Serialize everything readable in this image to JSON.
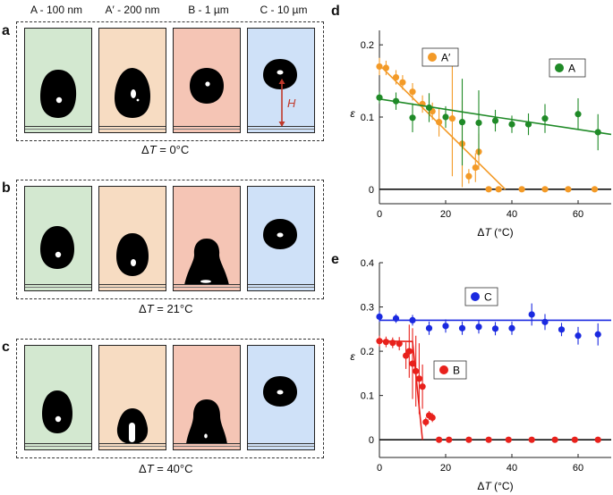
{
  "column_labels": [
    "A - 100 nm",
    "A′ - 200 nm",
    "B - 1 µm",
    "C - 10 µm"
  ],
  "column_colors": [
    "#d3e8d0",
    "#f7dcc2",
    "#f5c5b5",
    "#cfe1f8"
  ],
  "panel_letters": {
    "a": "a",
    "b": "b",
    "c": "c",
    "d": "d",
    "e": "e"
  },
  "rows": [
    {
      "dt_prefix": "Δ",
      "dt_var": "T",
      "dt_value": " = 0°C"
    },
    {
      "dt_prefix": "Δ",
      "dt_var": "T",
      "dt_value": " = 21°C"
    },
    {
      "dt_prefix": "Δ",
      "dt_var": "T",
      "dt_value": " = 40°C"
    }
  ],
  "height_marker_label": "H",
  "chart_data": [
    {
      "type": "scatter",
      "panel": "d",
      "xlabel_prefix": "Δ",
      "xlabel_var": "T",
      "xlabel_unit": " (°C)",
      "ylabel": "ε",
      "xlim": [
        0,
        70
      ],
      "ylim": [
        -0.02,
        0.22
      ],
      "xticks": [
        0,
        20,
        40,
        60
      ],
      "yticks": [
        0,
        0.1,
        0.2
      ],
      "ytick_labels": [
        "0",
        "0.1",
        "0.2"
      ],
      "series": [
        {
          "name": "A′",
          "color": "#f39a27",
          "x": [
            0,
            2,
            5,
            7,
            10,
            13,
            16,
            18,
            22,
            25,
            27,
            29,
            30,
            33,
            36,
            43,
            50,
            57,
            65
          ],
          "y": [
            0.17,
            0.168,
            0.155,
            0.148,
            0.135,
            0.118,
            0.108,
            0.093,
            0.098,
            0.063,
            0.018,
            0.03,
            0.052,
            0,
            0,
            0,
            0,
            0,
            0
          ],
          "err": [
            0.012,
            0.01,
            0.01,
            0.01,
            0.012,
            0.012,
            0.012,
            0.02,
            0.08,
            0.06,
            0.01,
            0.02,
            0.025,
            0,
            0,
            0,
            0,
            0,
            0
          ],
          "fit": [
            [
              0,
              0.172
            ],
            [
              38,
              0
            ]
          ]
        },
        {
          "name": "A",
          "color": "#1f8a27",
          "x": [
            0,
            5,
            10,
            15,
            20,
            25,
            30,
            35,
            40,
            45,
            50,
            60,
            66
          ],
          "y": [
            0.127,
            0.122,
            0.099,
            0.113,
            0.1,
            0.093,
            0.092,
            0.095,
            0.09,
            0.09,
            0.098,
            0.104,
            0.079
          ],
          "err": [
            0.008,
            0.012,
            0.02,
            0.02,
            0.015,
            0.06,
            0.045,
            0.015,
            0.012,
            0.015,
            0.02,
            0.022,
            0.025
          ],
          "fit": [
            [
              0,
              0.125
            ],
            [
              35,
              0.1
            ],
            [
              70,
              0.076
            ]
          ]
        }
      ],
      "zero_line": true,
      "legend": [
        {
          "label": "A′",
          "color": "#f39a27",
          "position": "upper-left"
        },
        {
          "label": "A",
          "color": "#1f8a27",
          "position": "upper-right"
        }
      ]
    },
    {
      "type": "scatter",
      "panel": "e",
      "xlabel_prefix": "Δ",
      "xlabel_var": "T",
      "xlabel_unit": " (°C)",
      "ylabel": "ε",
      "xlim": [
        0,
        70
      ],
      "ylim": [
        -0.04,
        0.4
      ],
      "xticks": [
        0,
        20,
        40,
        60
      ],
      "yticks": [
        0,
        0.1,
        0.2,
        0.3,
        0.4
      ],
      "ytick_labels": [
        "0",
        "0.1",
        "0.2",
        "0.3",
        "0.4"
      ],
      "series": [
        {
          "name": "C",
          "color": "#1a29e0",
          "x": [
            0,
            5,
            10,
            15,
            20,
            25,
            30,
            35,
            40,
            46,
            50,
            55,
            60,
            66
          ],
          "y": [
            0.278,
            0.274,
            0.27,
            0.252,
            0.257,
            0.252,
            0.255,
            0.251,
            0.252,
            0.283,
            0.266,
            0.249,
            0.235,
            0.238
          ],
          "err": [
            0.012,
            0.01,
            0.012,
            0.015,
            0.015,
            0.015,
            0.015,
            0.015,
            0.015,
            0.025,
            0.018,
            0.015,
            0.02,
            0.025
          ],
          "fit": [
            [
              0,
              0.27
            ],
            [
              70,
              0.27
            ]
          ]
        },
        {
          "name": "B",
          "color": "#e8211c",
          "x": [
            0,
            2,
            4,
            6,
            8,
            9,
            10,
            11,
            12,
            13,
            14,
            15,
            16,
            18,
            21,
            27,
            33,
            39,
            46,
            53,
            59,
            66
          ],
          "y": [
            0.223,
            0.221,
            0.219,
            0.217,
            0.19,
            0.2,
            0.172,
            0.155,
            0.138,
            0.12,
            0.04,
            0.055,
            0.05,
            0,
            0,
            0,
            0,
            0,
            0,
            0,
            0,
            0
          ],
          "err": [
            0.012,
            0.012,
            0.012,
            0.015,
            0.03,
            0.06,
            0.08,
            0.08,
            0.08,
            0.05,
            0.01,
            0.01,
            0.01,
            0,
            0,
            0,
            0,
            0,
            0,
            0,
            0,
            0
          ],
          "fit": [
            [
              0,
              0.223
            ],
            [
              10,
              0.222
            ],
            [
              13,
              0
            ]
          ]
        }
      ],
      "zero_line": true,
      "legend": [
        {
          "label": "C",
          "color": "#1a29e0",
          "position": "top-center"
        },
        {
          "label": "B",
          "color": "#e8211c",
          "position": "middle-left"
        }
      ]
    }
  ]
}
